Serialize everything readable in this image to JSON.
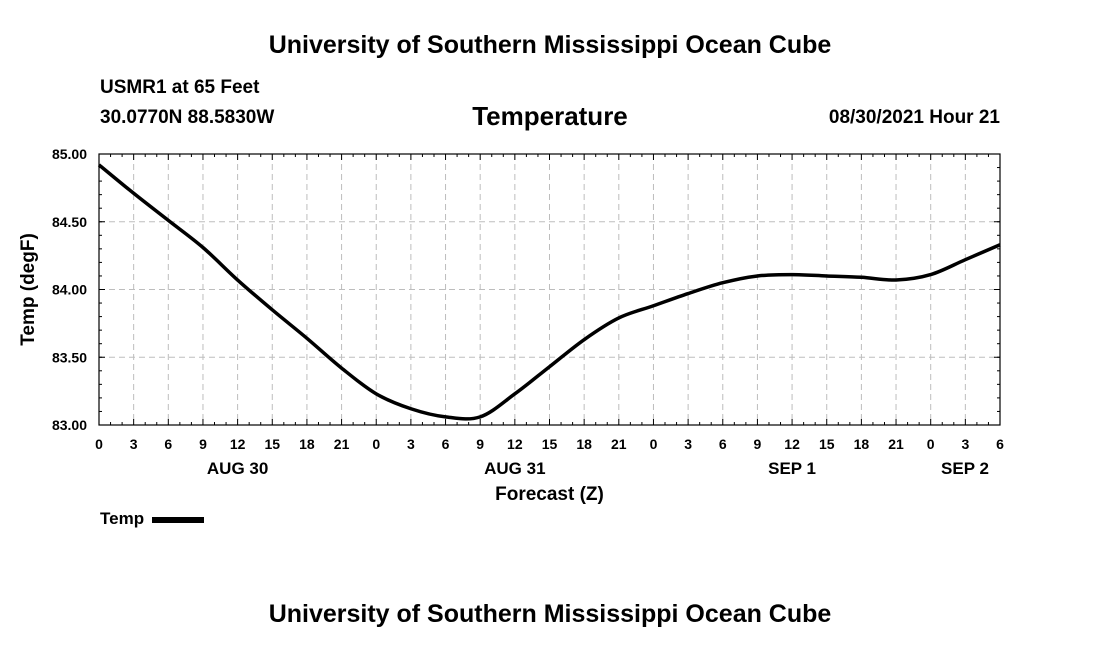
{
  "header": {
    "top_title": "University of Southern Mississippi Ocean Cube",
    "bottom_title": "University of Southern Mississippi Ocean Cube",
    "station": "USMR1 at 65 Feet",
    "coords": "30.0770N  88.5830W",
    "date": "08/30/2021 Hour 21"
  },
  "legend": {
    "label": "Temp"
  },
  "chart_data": {
    "type": "line",
    "title": "Temperature",
    "xlabel": "Forecast (Z)",
    "ylabel": "Temp (degF)",
    "x_unit": "hours from 00Z AUG 30",
    "xlim": [
      0,
      78
    ],
    "ylim": [
      83.0,
      85.0
    ],
    "yticks": [
      "83.00",
      "83.50",
      "84.00",
      "84.50",
      "85.00"
    ],
    "xticks": [
      "0",
      "3",
      "6",
      "9",
      "12",
      "15",
      "18",
      "21",
      "0",
      "3",
      "6",
      "9",
      "12",
      "15",
      "18",
      "21",
      "0",
      "3",
      "6",
      "9",
      "12",
      "15",
      "18",
      "21",
      "0",
      "3",
      "6"
    ],
    "day_labels": [
      {
        "hour": 12,
        "label": "AUG 30"
      },
      {
        "hour": 36,
        "label": "AUG 31"
      },
      {
        "hour": 60,
        "label": "SEP 1"
      },
      {
        "hour": 78,
        "label": "SEP 2"
      }
    ],
    "grid": true,
    "series": [
      {
        "name": "Temp",
        "color": "#000000",
        "x": [
          0,
          3,
          6,
          9,
          12,
          15,
          18,
          21,
          24,
          27,
          30,
          33,
          36,
          39,
          42,
          45,
          48,
          51,
          54,
          57,
          60,
          63,
          66,
          69,
          72,
          75,
          78
        ],
        "values": [
          84.92,
          84.71,
          84.51,
          84.31,
          84.07,
          83.85,
          83.64,
          83.42,
          83.23,
          83.12,
          83.06,
          83.06,
          83.23,
          83.43,
          83.63,
          83.79,
          83.88,
          83.97,
          84.05,
          84.1,
          84.11,
          84.1,
          84.09,
          84.07,
          84.11,
          84.22,
          84.33
        ]
      }
    ]
  }
}
